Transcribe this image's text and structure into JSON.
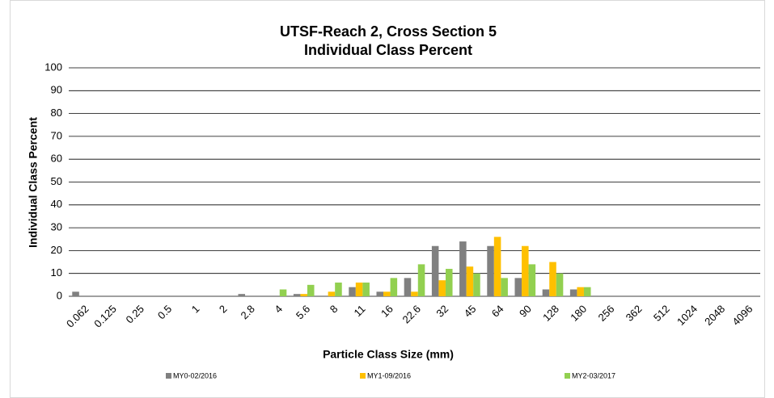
{
  "chart_data": {
    "type": "bar",
    "title": "UTSF-Reach 2, Cross Section 5",
    "subtitle": "Individual Class Percent",
    "x_label": "Particle Class Size (mm)",
    "y_label": "Individual Class Percent",
    "categories": [
      "0.062",
      "0.125",
      "0.25",
      "0.5",
      "1",
      "2",
      "2.8",
      "4",
      "5.6",
      "8",
      "11",
      "16",
      "22.6",
      "32",
      "45",
      "64",
      "90",
      "128",
      "180",
      "256",
      "362",
      "512",
      "1024",
      "2048",
      "4096"
    ],
    "series": [
      {
        "name": "MY0-02/2016",
        "color": "#808080",
        "values": [
          2,
          0,
          0,
          0,
          0,
          0,
          1,
          0,
          1,
          0,
          4,
          2,
          8,
          22,
          24,
          22,
          8,
          3,
          3,
          0,
          0,
          0,
          0,
          0,
          0
        ]
      },
      {
        "name": "MY1-09/2016",
        "color": "#ffc000",
        "values": [
          0,
          0,
          0,
          0,
          0,
          0,
          0,
          0,
          1,
          2,
          6,
          2,
          2,
          7,
          13,
          26,
          22,
          15,
          4,
          0,
          0,
          0,
          0,
          0,
          0
        ]
      },
      {
        "name": "MY2-03/2017",
        "color": "#92d050",
        "values": [
          0,
          0,
          0,
          0,
          0,
          0,
          0,
          3,
          5,
          6,
          6,
          8,
          14,
          12,
          10,
          8,
          14,
          10,
          4,
          0,
          0,
          0,
          0,
          0,
          0
        ]
      }
    ],
    "ylim": [
      0,
      100
    ],
    "yticks": [
      0,
      10,
      20,
      30,
      40,
      50,
      60,
      70,
      80,
      90,
      100
    ],
    "grid": true,
    "legend": "bottom"
  }
}
